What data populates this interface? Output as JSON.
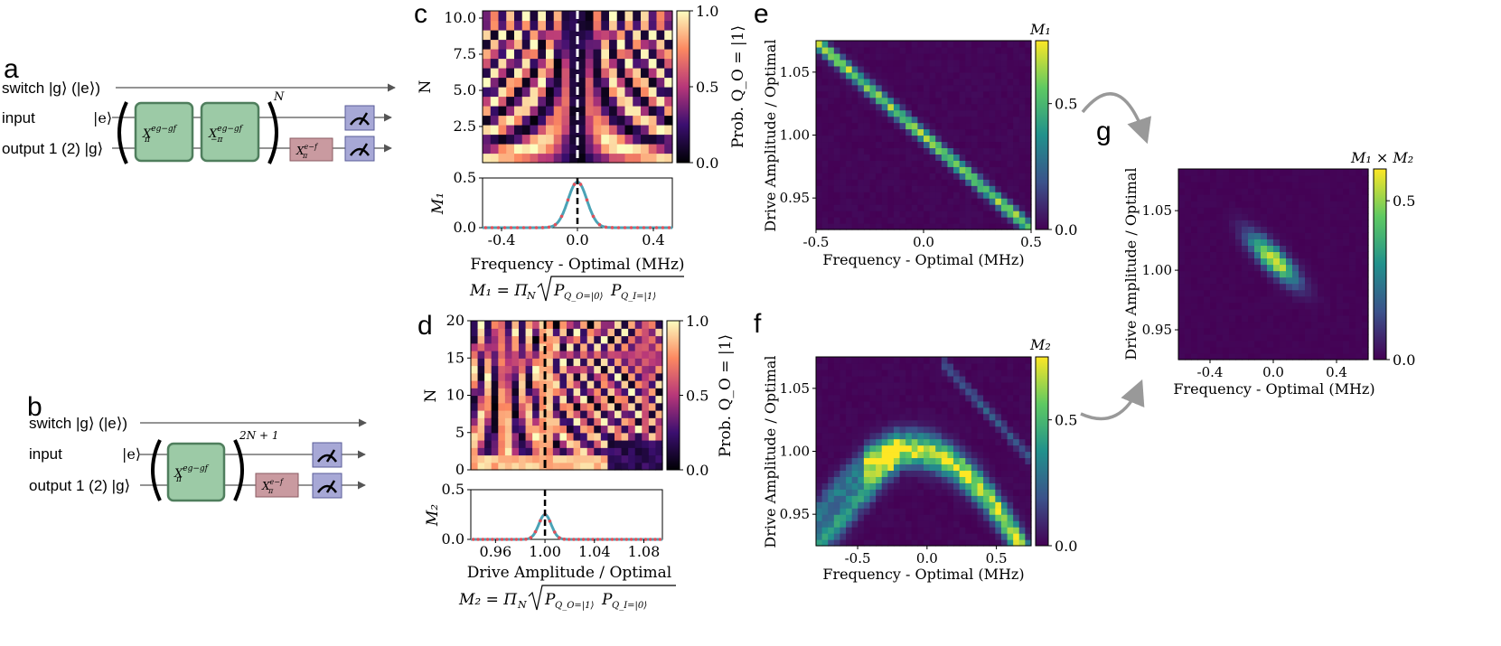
{
  "panels": {
    "a": {
      "letter": "a",
      "switch_label": "switch |g⟩ (|e⟩)",
      "input_label": "input",
      "input_ket": "|e⟩",
      "output_label": "output 1 (2) |g⟩",
      "gate1": "X",
      "gate1_sup": "eg−gf",
      "gate1_sub": "π",
      "gate2": "X",
      "gate2_sup": "eg−gf",
      "gate2_sub": "−π",
      "gate3": "X",
      "gate3_sup": "e−f",
      "gate3_sub": "π",
      "repeat": "N"
    },
    "b": {
      "letter": "b",
      "switch_label": "switch |g⟩ (|e⟩)",
      "input_label": "input",
      "input_ket": "|e⟩",
      "output_label": "output 1 (2) |g⟩",
      "gate1": "X",
      "gate1_sup": "eg−gf",
      "gate1_sub": "π",
      "gate3": "X",
      "gate3_sup": "e−f",
      "gate3_sub": "π",
      "repeat": "2N + 1"
    },
    "c": {
      "letter": "c",
      "ylabel_top": "N",
      "ylabel_bottom": "M₁",
      "xlabel": "Frequency - Optimal (MHz)",
      "formula_left": "M₁ = Π",
      "formula_sub": "N",
      "formula_root": "P",
      "formula_p1": "Q_O=|0⟩",
      "formula_p2": "Q_I=|1⟩",
      "colorbar_label": "Prob. Q_O = |1⟩"
    },
    "d": {
      "letter": "d",
      "ylabel_top": "N",
      "ylabel_bottom": "M₂",
      "xlabel": "Drive Amplitude / Optimal",
      "formula_left": "M₂ = Π",
      "formula_sub": "N",
      "formula_p1": "Q_O=|1⟩",
      "formula_p2": "Q_I=|0⟩",
      "colorbar_label": "Prob. Q_O = |1⟩"
    },
    "e": {
      "letter": "e",
      "colorbar_title": "M₁",
      "xlabel": "Frequency - Optimal (MHz)",
      "ylabel": "Drive Amplitude / Optimal"
    },
    "f": {
      "letter": "f",
      "colorbar_title": "M₂",
      "xlabel": "Frequency - Optimal (MHz)",
      "ylabel": "Drive Amplitude / Optimal"
    },
    "g": {
      "letter": "g",
      "colorbar_title": "M₁ × M₂",
      "xlabel": "Frequency - Optimal (MHz)",
      "ylabel": "Drive Amplitude / Optimal"
    }
  },
  "chart_data": [
    {
      "id": "c_heat",
      "type": "heatmap",
      "colormap": "magma",
      "x_range": [
        -0.5,
        0.5
      ],
      "y_range": [
        0,
        10.5
      ],
      "yticks": [
        "2.5",
        "5.0",
        "7.5",
        "10.0"
      ],
      "ytick_values": [
        2.5,
        5.0,
        7.5,
        10.0
      ],
      "colorbar_ticks": [
        "0.0",
        "0.5",
        "1.0"
      ],
      "colorbar_range": [
        0,
        1
      ],
      "marker_x": 0.0,
      "xlabel": "Frequency - Optimal (MHz)",
      "ylabel": "N"
    },
    {
      "id": "c_line",
      "type": "line",
      "x_range": [
        -0.5,
        0.5
      ],
      "y_range": [
        0,
        0.5
      ],
      "xticks": [
        "-0.4",
        "0.0",
        "0.4"
      ],
      "xtick_values": [
        -0.4,
        0.0,
        0.4
      ],
      "yticks": [
        "0.0",
        "0.5"
      ],
      "ytick_values": [
        0.0,
        0.5
      ],
      "peak_x": 0.0,
      "peak_y": 0.46,
      "width": 0.05,
      "marker_x": 0.0,
      "xlabel": "Frequency - Optimal (MHz)",
      "ylabel": "M₁"
    },
    {
      "id": "d_heat",
      "type": "heatmap",
      "colormap": "magma",
      "x_range": [
        0.94,
        1.095
      ],
      "y_range": [
        0,
        20
      ],
      "yticks": [
        "0",
        "5",
        "10",
        "15",
        "20"
      ],
      "ytick_values": [
        0,
        5,
        10,
        15,
        20
      ],
      "colorbar_ticks": [
        "0.0",
        "0.5",
        "1.0"
      ],
      "colorbar_range": [
        0,
        1
      ],
      "marker_x": 1.0,
      "xlabel": "Drive Amplitude / Optimal",
      "ylabel": "N"
    },
    {
      "id": "d_line",
      "type": "line",
      "x_range": [
        0.94,
        1.095
      ],
      "y_range": [
        0,
        0.5
      ],
      "xticks": [
        "0.96",
        "1.00",
        "1.04",
        "1.08"
      ],
      "xtick_values": [
        0.96,
        1.0,
        1.04,
        1.08
      ],
      "yticks": [
        "0.0",
        "0.5"
      ],
      "ytick_values": [
        0.0,
        0.5
      ],
      "peak_x": 1.0,
      "peak_y": 0.25,
      "width": 0.005,
      "marker_x": 1.0,
      "xlabel": "Drive Amplitude / Optimal",
      "ylabel": "M₂"
    },
    {
      "id": "e_heat",
      "type": "heatmap",
      "colormap": "viridis",
      "x_range": [
        -0.5,
        0.5
      ],
      "y_range": [
        0.925,
        1.075
      ],
      "xticks": [
        "-0.5",
        "0.0",
        "0.5"
      ],
      "xtick_values": [
        -0.5,
        0.0,
        0.5
      ],
      "yticks": [
        "0.95",
        "1.00",
        "1.05"
      ],
      "ytick_values": [
        0.95,
        1.0,
        1.05
      ],
      "colorbar_ticks": [
        "0.0",
        "0.5"
      ],
      "colorbar_tick_values": [
        0.0,
        0.5
      ],
      "colorbar_range": [
        0,
        0.75
      ],
      "title": "M₁",
      "xlabel": "Frequency - Optimal (MHz)",
      "ylabel": "Drive Amplitude / Optimal"
    },
    {
      "id": "f_heat",
      "type": "heatmap",
      "colormap": "viridis",
      "x_range": [
        -0.8,
        0.75
      ],
      "y_range": [
        0.925,
        1.075
      ],
      "xticks": [
        "-0.5",
        "0.0",
        "0.5"
      ],
      "xtick_values": [
        -0.5,
        0.0,
        0.5
      ],
      "yticks": [
        "0.95",
        "1.00",
        "1.05"
      ],
      "ytick_values": [
        0.95,
        1.0,
        1.05
      ],
      "colorbar_ticks": [
        "0.0",
        "0.5"
      ],
      "colorbar_tick_values": [
        0.0,
        0.5
      ],
      "colorbar_range": [
        0,
        0.75
      ],
      "title": "M₂",
      "xlabel": "Frequency - Optimal (MHz)",
      "ylabel": "Drive Amplitude / Optimal"
    },
    {
      "id": "g_heat",
      "type": "heatmap",
      "colormap": "viridis",
      "x_range": [
        -0.6,
        0.6
      ],
      "y_range": [
        0.925,
        1.085
      ],
      "xticks": [
        "-0.4",
        "0.0",
        "0.4"
      ],
      "xtick_values": [
        -0.4,
        0.0,
        0.4
      ],
      "yticks": [
        "0.95",
        "1.00",
        "1.05"
      ],
      "ytick_values": [
        0.95,
        1.0,
        1.05
      ],
      "colorbar_ticks": [
        "0.0",
        "0.5"
      ],
      "colorbar_tick_values": [
        0.0,
        0.5
      ],
      "colorbar_range": [
        0,
        0.6
      ],
      "title": "M₁ × M₂",
      "xlabel": "Frequency - Optimal (MHz)",
      "ylabel": "Drive Amplitude / Optimal"
    }
  ]
}
